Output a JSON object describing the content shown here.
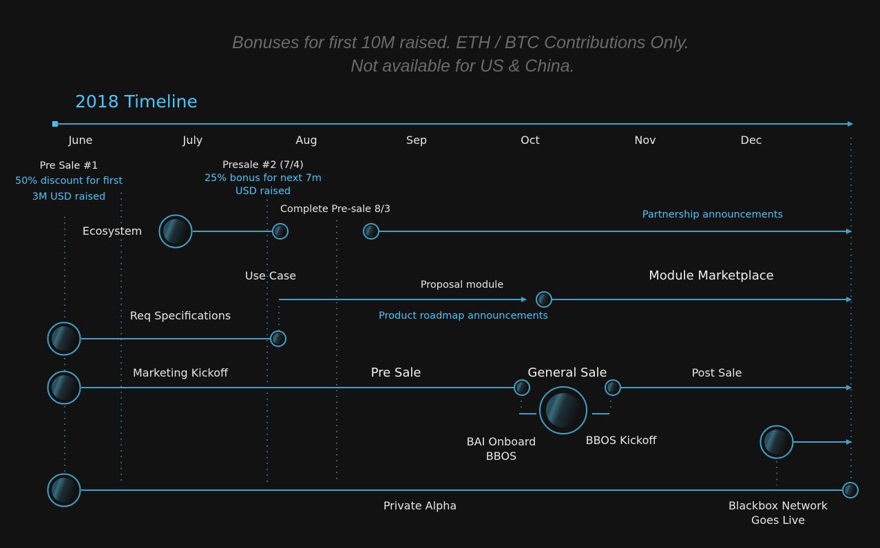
{
  "header": {
    "line1": "Bonuses for first 10M raised. ETH / BTC Contributions Only.",
    "line2": "Not available for US & China."
  },
  "title": "2018 Timeline",
  "months": [
    "June",
    "July",
    "Aug",
    "Sep",
    "Oct",
    "Nov",
    "Dec"
  ],
  "presale1": {
    "title": "Pre Sale #1",
    "line1": "50% discount for first",
    "line2": "3M USD raised"
  },
  "presale2": {
    "title": "Presale #2 (7/4)",
    "line1": "25% bonus for next 7m",
    "line2": "USD raised"
  },
  "labels": {
    "complete_presale": "Complete Pre-sale 8/3",
    "ecosystem": "Ecosystem",
    "partnership": "Partnership announcements",
    "use_case": "Use Case",
    "proposal_module": "Proposal module",
    "module_marketplace": "Module Marketplace",
    "product_roadmap": "Product roadmap announcements",
    "req_specs": "Req Specifications",
    "marketing_kickoff": "Marketing Kickoff",
    "pre_sale": "Pre Sale",
    "general_sale": "General Sale",
    "post_sale": "Post Sale",
    "bai_onboard_1": "BAI Onboard",
    "bai_onboard_2": "BBOS",
    "bbos_kickoff": "BBOS Kickoff",
    "private_alpha": "Private Alpha",
    "network_live_1": "Blackbox Network",
    "network_live_2": "Goes Live"
  },
  "colors": {
    "background": "#121212",
    "accent": "#3fa4c8",
    "highlight_text": "#4fc3f7",
    "header_text": "#6a6a6a"
  }
}
